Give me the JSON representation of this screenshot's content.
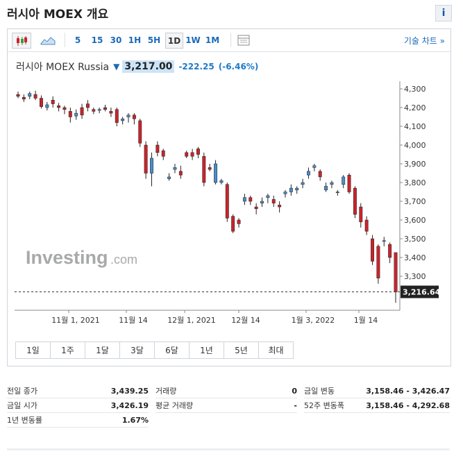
{
  "page": {
    "title": "러시아 MOEX 개요",
    "info_label": "i"
  },
  "toolbar": {
    "intervals": [
      "5",
      "15",
      "30",
      "1H",
      "5H",
      "1D",
      "1W",
      "1M"
    ],
    "active_interval": "1D",
    "advanced_label": "기술 차트 »"
  },
  "quote": {
    "name": "러시아 MOEX Russia",
    "direction": "down",
    "price": "3,217.00",
    "change": "-222.25",
    "change_pct": "(-6.46%)"
  },
  "watermark": {
    "brand": "Investing",
    "suffix": ".com"
  },
  "range_buttons": [
    "1일",
    "1주",
    "1달",
    "3달",
    "6달",
    "1년",
    "5년",
    "최대"
  ],
  "stats": {
    "col1": [
      {
        "label": "전일 종가",
        "value": "3,439.25"
      },
      {
        "label": "금일 시가",
        "value": "3,426.19"
      },
      {
        "label": "1년 변동률",
        "value": "1.67%"
      }
    ],
    "col2": [
      {
        "label": "거래량",
        "value": "0"
      },
      {
        "label": "평균 거래량",
        "value": "-"
      }
    ],
    "col3": [
      {
        "label": "금일 변동",
        "value": "3,158.46 - 3,426.47"
      },
      {
        "label": "52주 변동폭",
        "value": "3,158.46 - 4,292.68"
      }
    ]
  },
  "colors": {
    "up": "#4a8ec9",
    "down": "#c8242b",
    "accent": "#1c6ab7",
    "price_bg": "#cce4f7"
  },
  "chart_data": {
    "type": "candlestick",
    "ylim": [
      3200,
      4300
    ],
    "y_ticks": [
      4300,
      4200,
      4100,
      4000,
      3900,
      3800,
      3700,
      3600,
      3500,
      3400,
      3300
    ],
    "x_tick_labels": [
      "11월 1, 2021",
      "11월 14",
      "12월 1, 2021",
      "12월 14",
      "1월 3, 2022",
      "1월 14"
    ],
    "last_price_label": "3,216.64",
    "last_price": 3216.64,
    "candles": [
      {
        "o": 4270,
        "h": 4285,
        "l": 4250,
        "c": 4260
      },
      {
        "o": 4255,
        "h": 4270,
        "l": 4230,
        "c": 4245
      },
      {
        "o": 4260,
        "h": 4285,
        "l": 4245,
        "c": 4275
      },
      {
        "o": 4270,
        "h": 4290,
        "l": 4240,
        "c": 4250
      },
      {
        "o": 4250,
        "h": 4265,
        "l": 4195,
        "c": 4205
      },
      {
        "o": 4200,
        "h": 4230,
        "l": 4185,
        "c": 4215
      },
      {
        "o": 4240,
        "h": 4260,
        "l": 4200,
        "c": 4220
      },
      {
        "o": 4210,
        "h": 4225,
        "l": 4180,
        "c": 4200
      },
      {
        "o": 4200,
        "h": 4210,
        "l": 4165,
        "c": 4190
      },
      {
        "o": 4180,
        "h": 4200,
        "l": 4120,
        "c": 4150
      },
      {
        "o": 4155,
        "h": 4190,
        "l": 4135,
        "c": 4170
      },
      {
        "o": 4200,
        "h": 4220,
        "l": 4140,
        "c": 4160
      },
      {
        "o": 4220,
        "h": 4240,
        "l": 4180,
        "c": 4200
      },
      {
        "o": 4190,
        "h": 4200,
        "l": 4165,
        "c": 4180
      },
      {
        "o": 4185,
        "h": 4200,
        "l": 4170,
        "c": 4190
      },
      {
        "o": 4200,
        "h": 4215,
        "l": 4180,
        "c": 4190
      },
      {
        "o": 4180,
        "h": 4200,
        "l": 4150,
        "c": 4170
      },
      {
        "o": 4190,
        "h": 4200,
        "l": 4100,
        "c": 4120
      },
      {
        "o": 4130,
        "h": 4150,
        "l": 4110,
        "c": 4140
      },
      {
        "o": 4150,
        "h": 4170,
        "l": 4120,
        "c": 4160
      },
      {
        "o": 4160,
        "h": 4170,
        "l": 4110,
        "c": 4140
      },
      {
        "o": 4130,
        "h": 4140,
        "l": 3990,
        "c": 4010
      },
      {
        "o": 4000,
        "h": 4020,
        "l": 3820,
        "c": 3850
      },
      {
        "o": 3850,
        "h": 3960,
        "l": 3780,
        "c": 3930
      },
      {
        "o": 4000,
        "h": 4020,
        "l": 3940,
        "c": 3960
      },
      {
        "o": 3970,
        "h": 3980,
        "l": 3920,
        "c": 3940
      },
      {
        "o": 3820,
        "h": 3850,
        "l": 3810,
        "c": 3830
      },
      {
        "o": 3870,
        "h": 3900,
        "l": 3850,
        "c": 3880
      },
      {
        "o": 3860,
        "h": 3890,
        "l": 3820,
        "c": 3840
      },
      {
        "o": 3960,
        "h": 3970,
        "l": 3930,
        "c": 3940
      },
      {
        "o": 3960,
        "h": 3980,
        "l": 3920,
        "c": 3940
      },
      {
        "o": 3980,
        "h": 3990,
        "l": 3930,
        "c": 3950
      },
      {
        "o": 3940,
        "h": 3960,
        "l": 3780,
        "c": 3800
      },
      {
        "o": 3880,
        "h": 3900,
        "l": 3860,
        "c": 3870
      },
      {
        "o": 3800,
        "h": 3920,
        "l": 3790,
        "c": 3900
      },
      {
        "o": 3800,
        "h": 3820,
        "l": 3790,
        "c": 3810
      },
      {
        "o": 3790,
        "h": 3800,
        "l": 3590,
        "c": 3610
      },
      {
        "o": 3620,
        "h": 3630,
        "l": 3530,
        "c": 3540
      },
      {
        "o": 3600,
        "h": 3610,
        "l": 3560,
        "c": 3580
      },
      {
        "o": 3700,
        "h": 3740,
        "l": 3680,
        "c": 3720
      },
      {
        "o": 3720,
        "h": 3730,
        "l": 3680,
        "c": 3700
      },
      {
        "o": 3670,
        "h": 3690,
        "l": 3630,
        "c": 3660
      },
      {
        "o": 3690,
        "h": 3720,
        "l": 3670,
        "c": 3700
      },
      {
        "o": 3720,
        "h": 3740,
        "l": 3690,
        "c": 3730
      },
      {
        "o": 3710,
        "h": 3730,
        "l": 3670,
        "c": 3690
      },
      {
        "o": 3680,
        "h": 3700,
        "l": 3640,
        "c": 3670
      },
      {
        "o": 3740,
        "h": 3760,
        "l": 3720,
        "c": 3750
      },
      {
        "o": 3750,
        "h": 3790,
        "l": 3730,
        "c": 3770
      },
      {
        "o": 3760,
        "h": 3780,
        "l": 3740,
        "c": 3770
      },
      {
        "o": 3790,
        "h": 3820,
        "l": 3770,
        "c": 3800
      },
      {
        "o": 3840,
        "h": 3880,
        "l": 3820,
        "c": 3860
      },
      {
        "o": 3880,
        "h": 3900,
        "l": 3860,
        "c": 3890
      },
      {
        "o": 3860,
        "h": 3870,
        "l": 3810,
        "c": 3830
      },
      {
        "o": 3760,
        "h": 3800,
        "l": 3750,
        "c": 3780
      },
      {
        "o": 3790,
        "h": 3810,
        "l": 3770,
        "c": 3800
      },
      {
        "o": 3750,
        "h": 3760,
        "l": 3730,
        "c": 3750
      },
      {
        "o": 3790,
        "h": 3840,
        "l": 3770,
        "c": 3830
      },
      {
        "o": 3840,
        "h": 3850,
        "l": 3740,
        "c": 3750
      },
      {
        "o": 3770,
        "h": 3780,
        "l": 3610,
        "c": 3630
      },
      {
        "o": 3670,
        "h": 3690,
        "l": 3560,
        "c": 3590
      },
      {
        "o": 3600,
        "h": 3620,
        "l": 3520,
        "c": 3540
      },
      {
        "o": 3500,
        "h": 3520,
        "l": 3360,
        "c": 3380
      },
      {
        "o": 3460,
        "h": 3470,
        "l": 3260,
        "c": 3290
      },
      {
        "o": 3490,
        "h": 3510,
        "l": 3460,
        "c": 3490
      },
      {
        "o": 3470,
        "h": 3480,
        "l": 3370,
        "c": 3400
      },
      {
        "o": 3426.19,
        "h": 3426.47,
        "l": 3158.46,
        "c": 3216.64
      }
    ]
  }
}
